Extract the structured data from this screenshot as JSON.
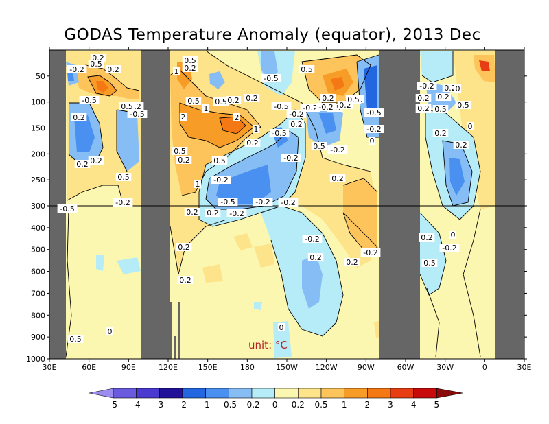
{
  "chart_data": {
    "type": "heatmap",
    "title": "GODAS Temperature Anomaly (equator), 2013 Dec",
    "unit_label": "unit: °C",
    "x_ticks": [
      "30E",
      "60E",
      "90E",
      "120E",
      "150E",
      "180",
      "150W",
      "120W",
      "90W",
      "60W",
      "30W",
      "0",
      "30E"
    ],
    "y_ticks_upper": [
      50,
      100,
      150,
      200,
      250,
      300
    ],
    "y_ticks_lower": [
      400,
      500,
      600,
      700,
      800,
      900,
      1000
    ],
    "x_range": [
      "30E",
      "30E"
    ],
    "y_range": [
      0,
      1000
    ],
    "y_axis": "depth (m), upper 0-300 stretched, lower 300-1000 compressed",
    "reference_line_depth": 300,
    "colorbar": {
      "labels": [
        "-5",
        "-4",
        "-3",
        "-2",
        "-1",
        "-0.5",
        "-0.2",
        "0",
        "0.2",
        "0.5",
        "1",
        "2",
        "3",
        "4",
        "5"
      ],
      "colors": [
        "#9c8cf0",
        "#6a5add",
        "#4a3ad0",
        "#22129a",
        "#2266e0",
        "#4a90f0",
        "#87bdf5",
        "#b6ecf7",
        "#fbf7b0",
        "#fde38a",
        "#fcc45a",
        "#f89c28",
        "#f47814",
        "#e83c14",
        "#c80a0a",
        "#8a0a0a"
      ]
    },
    "land_masks": [
      {
        "name": "Africa",
        "from": "30E",
        "to": "42E"
      },
      {
        "name": "Indonesia",
        "from": "100E",
        "to": "120E"
      },
      {
        "name": "South America",
        "from": "80W",
        "to": "50W"
      },
      {
        "name": "Africa east",
        "from": "10E",
        "to": "30E"
      }
    ],
    "contour_labels": [
      "0.2",
      "-0.2",
      "0.5",
      "0.2",
      "-0.5",
      "-0.2",
      "-0.5",
      "0.2",
      "0.5",
      "0.2",
      "0.2",
      "0.5",
      "0.5",
      "0.2",
      "1",
      "0.5",
      "1",
      "2",
      "0.5",
      "0.2",
      "1",
      "2",
      "1",
      "0.2",
      "0.5",
      "0.2",
      "-0.2",
      "-0.5",
      "-0.2",
      "-0.2",
      "0.5",
      "0.2",
      "0.2",
      "-0.5",
      "0.5",
      "-0.5",
      "-0.2",
      "0.2",
      "-0.5",
      "-0.2",
      "-0.2",
      "0.5",
      "1",
      "0.2",
      "0.5",
      "0.2",
      "-0.5",
      "-0.2",
      "0.5",
      "-0.2",
      "-0.2",
      "0",
      "0.2",
      "-0.2",
      "-0.5",
      "0.2",
      "-0.2",
      "-0.2",
      "0.2",
      "0.5",
      "0.2",
      "0.2",
      "0.5",
      "0",
      "0.2",
      "0.2",
      "0.2",
      "0",
      "-0.2",
      "0.5",
      "-0.2",
      "0.2",
      "-0.2",
      "0.2",
      "0.5",
      "0",
      "0.2",
      "0.2",
      "0.2",
      "0",
      "0"
    ],
    "grid": false
  }
}
